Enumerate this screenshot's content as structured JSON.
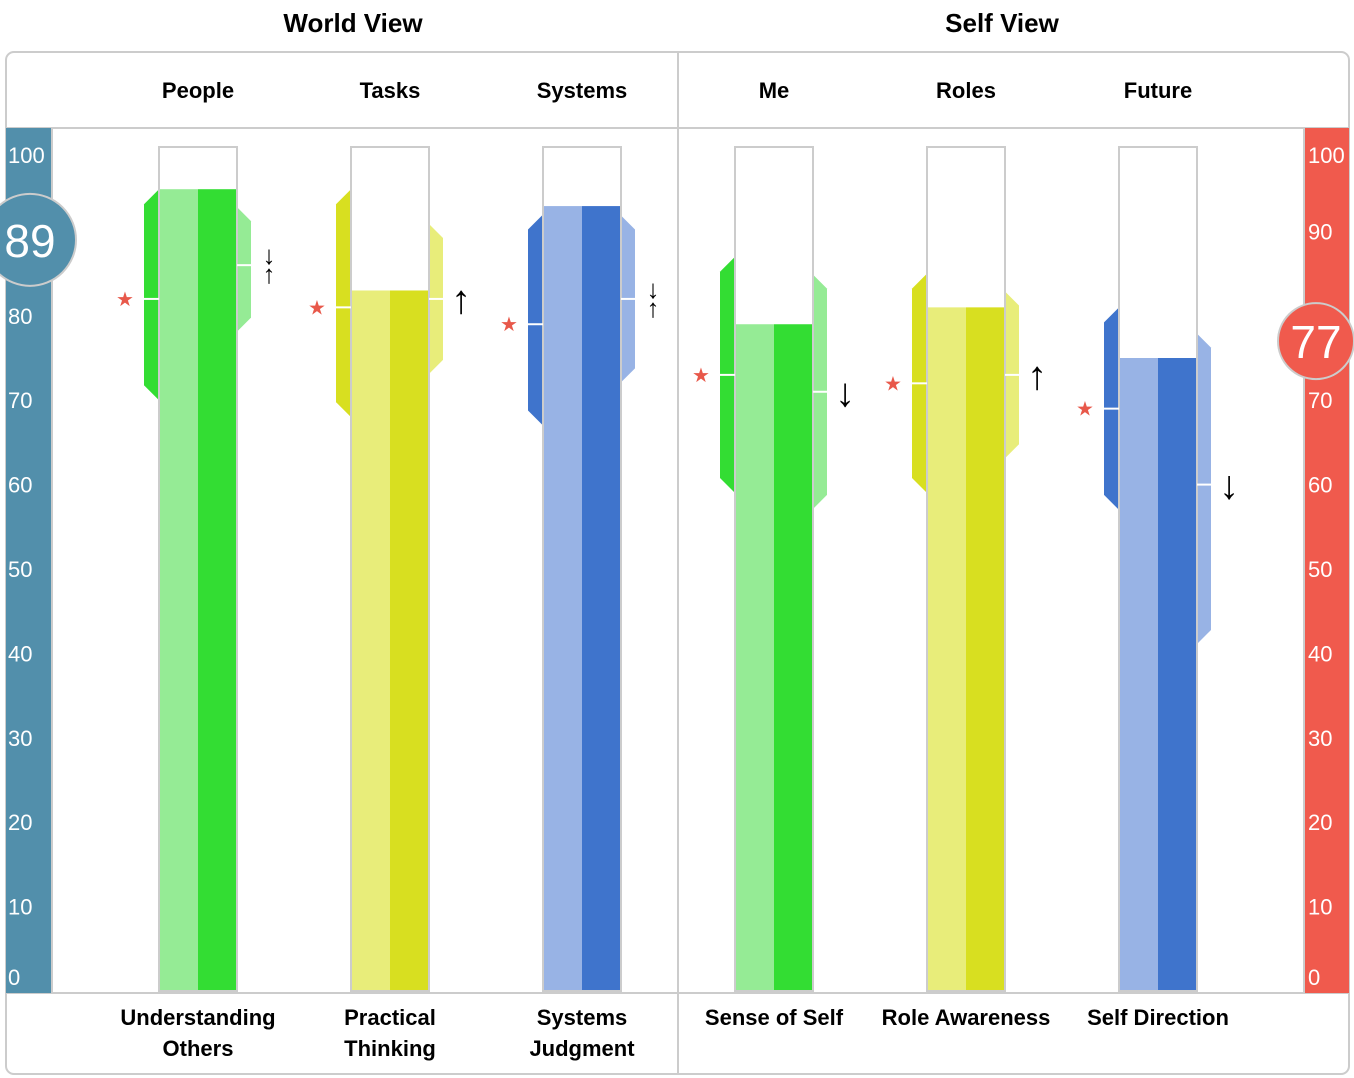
{
  "chart_data": {
    "type": "bar",
    "ylim": [
      0,
      100
    ],
    "yticks": [
      "0",
      "10",
      "20",
      "30",
      "40",
      "50",
      "60",
      "70",
      "80",
      "90",
      "100"
    ],
    "groups": [
      {
        "title": "World View",
        "score": "89",
        "axis_color": "#528fab",
        "categories": [
          {
            "header": "People",
            "label": [
              "Understanding",
              "Others"
            ],
            "value": 95,
            "range": [
              70,
              95
            ],
            "star": 82,
            "inner_range": [
              78,
              93
            ],
            "inner_mark": 86,
            "arrow": "↓↑",
            "light": "#95eb95",
            "dark": "#33dd33"
          },
          {
            "header": "Tasks",
            "label": [
              "Practical",
              "Thinking"
            ],
            "value": 83,
            "range": [
              68,
              95
            ],
            "star": 81,
            "inner_range": [
              73,
              91
            ],
            "inner_mark": 82,
            "arrow": "↑",
            "light": "#e8ed7a",
            "dark": "#d8df20"
          },
          {
            "header": "Systems",
            "label": [
              "Systems",
              "Judgment"
            ],
            "value": 93,
            "range": [
              67,
              92
            ],
            "star": 79,
            "inner_range": [
              72,
              92
            ],
            "inner_mark": 82,
            "arrow": "↓↑",
            "light": "#98b3e5",
            "dark": "#3f74cc"
          }
        ]
      },
      {
        "title": "Self View",
        "score": "77",
        "axis_color": "#f05a4d",
        "categories": [
          {
            "header": "Me",
            "label": [
              "Sense of Self"
            ],
            "value": 79,
            "range": [
              59,
              87
            ],
            "star": 73,
            "inner_range": [
              57,
              85
            ],
            "inner_mark": 71,
            "arrow": "↓",
            "light": "#95eb95",
            "dark": "#33dd33"
          },
          {
            "header": "Roles",
            "label": [
              "Role Awareness"
            ],
            "value": 81,
            "range": [
              59,
              85
            ],
            "star": 72,
            "inner_range": [
              63,
              83
            ],
            "inner_mark": 73,
            "arrow": "↑",
            "light": "#e8ed7a",
            "dark": "#d8df20"
          },
          {
            "header": "Future",
            "label": [
              "Self Direction"
            ],
            "value": 75,
            "range": [
              57,
              81
            ],
            "star": 69,
            "inner_range": [
              41,
              78
            ],
            "inner_mark": 60,
            "arrow": "↓",
            "light": "#98b3e5",
            "dark": "#3f74cc"
          }
        ]
      }
    ]
  }
}
